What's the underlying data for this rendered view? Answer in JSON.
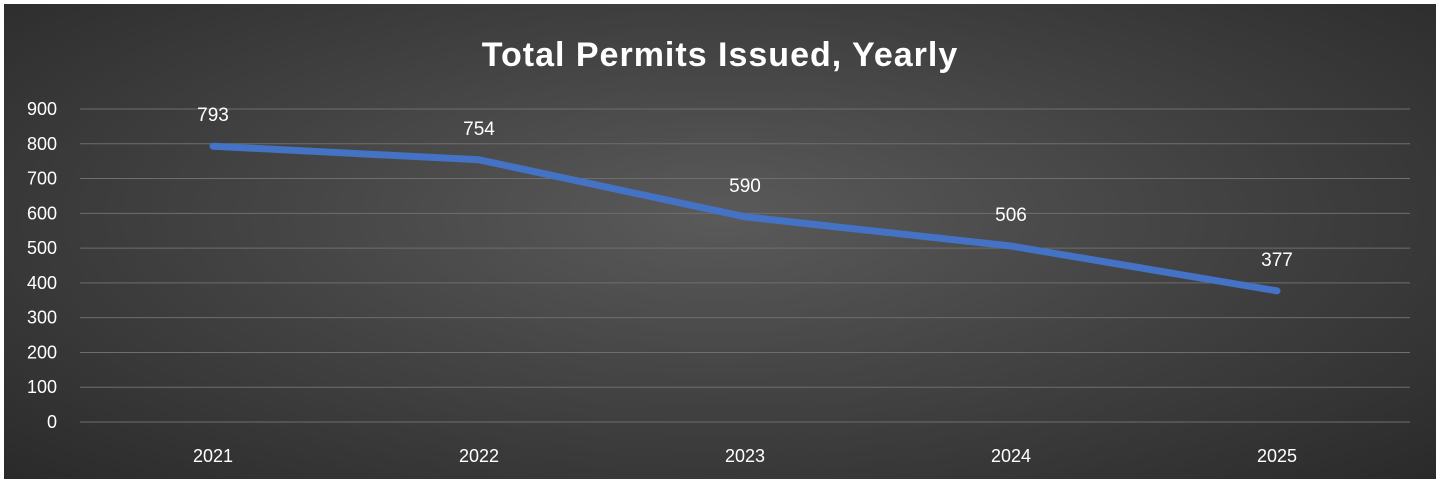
{
  "chart_data": {
    "type": "line",
    "title": "Total Permits Issued, Yearly",
    "xlabel": "",
    "ylabel": "",
    "categories": [
      "2021",
      "2022",
      "2023",
      "2024",
      "2025"
    ],
    "series": [
      {
        "values": [
          793,
          754,
          590,
          506,
          377
        ]
      }
    ],
    "ylim": [
      0,
      900
    ],
    "y_ticks": [
      0,
      100,
      200,
      300,
      400,
      500,
      600,
      700,
      800,
      900
    ],
    "grid": true,
    "legend": "none",
    "line_color": "#4472c4",
    "data_labels": true
  }
}
